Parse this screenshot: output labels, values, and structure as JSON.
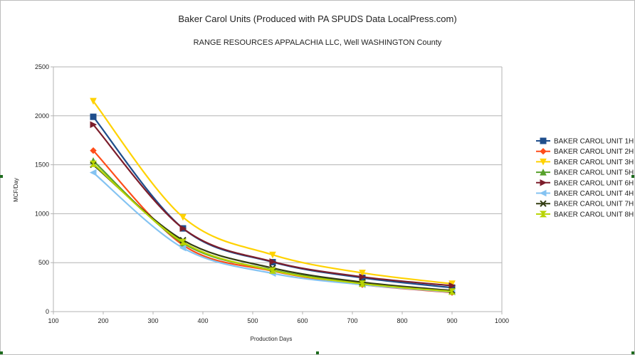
{
  "chart_data": {
    "type": "line",
    "title": "Baker Carol Units (Produced with PA SPUDS Data LocalPress.com)",
    "subtitle": "RANGE RESOURCES APPALACHIA LLC, Well  WASHINGTON County",
    "xlabel": "Production Days",
    "ylabel": "MCF/Day",
    "xlim": [
      100,
      1000
    ],
    "ylim": [
      0,
      2500
    ],
    "xticks": [
      100,
      200,
      300,
      400,
      500,
      600,
      700,
      800,
      900,
      1000
    ],
    "yticks": [
      0,
      500,
      1000,
      1500,
      2000,
      2500
    ],
    "grid": "horizontal",
    "legend_position": "right",
    "x": [
      180,
      360,
      540,
      720,
      900
    ],
    "series": [
      {
        "name": "BAKER CAROL UNIT 1H",
        "color": "#1f4e8c",
        "marker": "square",
        "values": [
          1990,
          850,
          505,
          345,
          245
        ]
      },
      {
        "name": "BAKER CAROL UNIT 2H",
        "color": "#ff4d1a",
        "marker": "diamond",
        "values": [
          1645,
          680,
          415,
          275,
          195
        ]
      },
      {
        "name": "BAKER CAROL UNIT 3H",
        "color": "#ffd200",
        "marker": "triangle-down",
        "values": [
          2150,
          965,
          580,
          395,
          285
        ]
      },
      {
        "name": "BAKER CAROL UNIT 5H",
        "color": "#57a12b",
        "marker": "triangle-up",
        "values": [
          1540,
          700,
          425,
          290,
          205
        ]
      },
      {
        "name": "BAKER CAROL UNIT 6H",
        "color": "#7c1d2b",
        "marker": "triangle-right",
        "values": [
          1910,
          850,
          510,
          355,
          265
        ]
      },
      {
        "name": "BAKER CAROL UNIT 4H",
        "color": "#84c3f2",
        "marker": "triangle-left",
        "values": [
          1420,
          650,
          390,
          275,
          200
        ]
      },
      {
        "name": "BAKER CAROL UNIT 7H",
        "color": "#333d12",
        "marker": "x",
        "values": [
          1500,
          730,
          445,
          300,
          215
        ]
      },
      {
        "name": "BAKER CAROL UNIT 8H",
        "color": "#b8d400",
        "marker": "hourglass",
        "values": [
          1510,
          710,
          420,
          285,
          205
        ]
      }
    ]
  }
}
